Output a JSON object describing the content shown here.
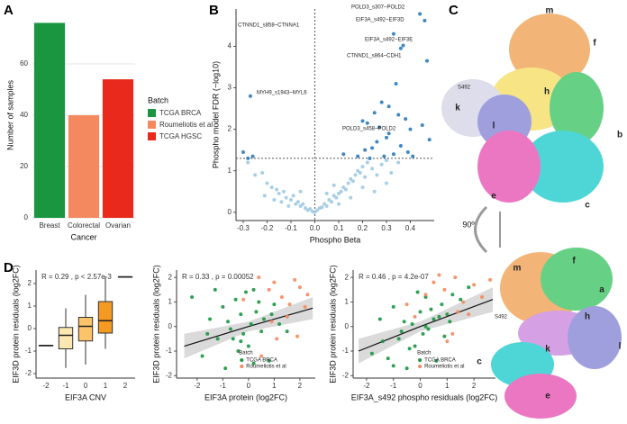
{
  "panel_labels": [
    "A",
    "B",
    "C",
    "D"
  ],
  "chart_data": [
    {
      "type": "bar",
      "x_label": "Cancer",
      "y_label": "Number of samples",
      "categories": [
        "Breast",
        "Colorectal",
        "Ovarian"
      ],
      "values": [
        76,
        40,
        54
      ],
      "colors": [
        "#1a9641",
        "#f4895f",
        "#e8291c"
      ],
      "ylim": [
        0,
        80
      ],
      "yticks": [
        0,
        20,
        40,
        60
      ],
      "grid": true,
      "legend_title": "Batch",
      "legend_labels": [
        "TCGA BRCA",
        "Roumeliotis et al",
        "TCGA HGSC"
      ]
    },
    {
      "type": "scatter",
      "x_label": "Phospho Beta",
      "y_label": "Phospho model FDR (−log10)",
      "xlim": [
        -0.33,
        0.5
      ],
      "xticks": [
        -0.3,
        -0.2,
        -0.1,
        {
          "value": 0,
          "label": "0.0"
        },
        0.1,
        0.2,
        0.3,
        0.4
      ],
      "ylim": [
        -0.2,
        4.9
      ],
      "yticks": [
        0,
        1,
        2,
        3,
        4
      ],
      "ref_lines": {
        "h": 1.3,
        "v": 0
      },
      "series": [
        {
          "color": "#9ecae1",
          "x": [
            -0.28,
            -0.25,
            -0.22,
            -0.2,
            -0.18,
            -0.16,
            -0.15,
            -0.13,
            -0.12,
            -0.1,
            -0.09,
            -0.08,
            -0.07,
            -0.06,
            -0.05,
            -0.04,
            -0.03,
            -0.02,
            -0.01,
            0,
            0.01,
            0.02,
            0.03,
            0.04,
            0.05,
            0.06,
            0.07,
            0.08,
            0.09,
            0.1,
            0.11,
            0.12,
            0.13,
            0.14,
            0.15,
            0.16,
            0.17,
            0.18,
            0.19,
            0.2,
            0.21,
            0.22,
            0.24,
            0.26,
            0.28,
            0.3,
            0.32,
            0.35,
            -0.11,
            -0.14,
            -0.17,
            -0.06,
            0.05,
            0.1,
            0.15,
            0.2,
            0.25,
            -0.21,
            0.3,
            0.08
          ],
          "values": [
            1.2,
            0.9,
            0.95,
            0.7,
            0.6,
            0.55,
            0.45,
            0.5,
            0.35,
            0.3,
            0.4,
            0.2,
            0.25,
            0.15,
            0.2,
            0.1,
            0.05,
            0.08,
            0.02,
            0,
            0.05,
            0.1,
            0.12,
            0.2,
            0.15,
            0.3,
            0.25,
            0.4,
            0.35,
            0.45,
            0.5,
            0.6,
            0.55,
            0.7,
            0.8,
            0.75,
            0.9,
            1.0,
            0.95,
            1.1,
            0.85,
            1.2,
            1.05,
            0.9,
            1.15,
            1.25,
            0.95,
            1.2,
            0.15,
            0.25,
            0.3,
            0.5,
            0.45,
            0.2,
            0.35,
            0.6,
            0.5,
            0.4,
            0.7,
            0.65
          ]
        },
        {
          "color": "#2b7bba",
          "x": [
            0.44,
            0.46,
            0.33,
            0.37,
            0.36,
            0.47,
            -0.27,
            0.34,
            0.28,
            0.31,
            0.25,
            0.35,
            0.2,
            0.22,
            0.27,
            0.38,
            0.4,
            0.3,
            0.26,
            0.24,
            0.21,
            0.45,
            0.31,
            0.39,
            0.29,
            -0.3,
            -0.28,
            -0.26,
            0.12,
            0.18,
            0.48,
            0.33,
            0.23,
            0.36,
            0.41
          ],
          "values": [
            4.78,
            4.62,
            4.3,
            4.02,
            3.95,
            3.65,
            2.8,
            3.1,
            2.65,
            2.55,
            2.4,
            2.35,
            2.2,
            2.15,
            2.05,
            2.25,
            2.0,
            1.8,
            1.7,
            1.55,
            1.5,
            2.1,
            1.9,
            1.45,
            1.35,
            1.45,
            1.3,
            1.35,
            1.4,
            1.35,
            1.75,
            1.4,
            1.3,
            1.6,
            1.35
          ]
        }
      ],
      "annotations": [
        "POLD3_s307~POLD2",
        "EIF3A_s492~EIF3D",
        "CTNND1_s858~CTNNA1",
        "EIF3A_s492~EIF3E",
        "CTNND1_s864~CDH1",
        "MYH9_s1943~MYL6",
        "POLD3_s458~POLD2"
      ]
    },
    {
      "type": "box",
      "x_label": "EIF3A CNV",
      "y_label": "EIF3D protein residuals (log2FC)",
      "note": "R = 0.29 , p < 2.57e-3",
      "categories": [
        "-2",
        "-1",
        "0",
        "1",
        "2"
      ],
      "min": [
        -0.75,
        -1.75,
        -1.6,
        -0.9,
        2.3
      ],
      "q1": [
        -0.75,
        -0.9,
        -0.55,
        -0.2,
        2.3
      ],
      "median": [
        -0.75,
        -0.3,
        0.1,
        0.35,
        2.3
      ],
      "q3": [
        -0.75,
        0.05,
        0.5,
        1.2,
        2.3
      ],
      "max": [
        -0.75,
        0.9,
        1.5,
        2.3,
        2.3
      ],
      "colors": [
        "#fff5e0",
        "#fde7b0",
        "#fbc36a",
        "#f59a20",
        "#c9540a"
      ],
      "ylim": [
        -2.2,
        2.6
      ],
      "yticks": [
        -2,
        -1,
        0,
        1,
        2
      ]
    },
    {
      "type": "scatter",
      "x_label": "EIF3A protein (log2FC)",
      "y_label": "EIF3D protein residuals (log2FC)",
      "note": "R = 0.33 , p = 0.00052",
      "xlim": [
        -2.8,
        2.6
      ],
      "xticks": [
        -2,
        -1,
        0,
        1,
        2
      ],
      "ylim": [
        -2.1,
        2.3
      ],
      "yticks": [
        -2,
        -1,
        0,
        1,
        2
      ],
      "legend_title": "Batch",
      "fit": {
        "x": [
          -2.5,
          0,
          2.5
        ],
        "y": [
          -0.8,
          0,
          0.75
        ],
        "lower": [
          -1.3,
          -0.2,
          0.3
        ],
        "upper": [
          -0.3,
          0.2,
          1.2
        ]
      },
      "series": [
        {
          "name": "TCGA BRCA",
          "color": "#1a9641",
          "x": [
            -2.2,
            -1.8,
            -1.5,
            -1.3,
            -1.2,
            -1,
            -0.9,
            -0.8,
            -0.6,
            -0.5,
            -0.4,
            -0.3,
            -0.2,
            -0.1,
            0,
            0.1,
            0.2,
            0.3,
            0.4,
            0.5,
            0.6,
            0.8,
            1,
            1.2,
            -1.6,
            -0.7,
            0.2,
            0.9,
            -0.3,
            1.5
          ],
          "values": [
            1.2,
            -1.2,
            0.3,
            1.5,
            -0.5,
            0.8,
            -1.7,
            0.2,
            -0.5,
            1.1,
            -1.0,
            0.5,
            -0.3,
            1.4,
            -0.8,
            0.1,
            -1.5,
            0.6,
            1.0,
            -0.2,
            0.3,
            -1.4,
            0.9,
            0.1,
            -0.3,
            -0.1,
            1.5,
            0.5,
            -0.6,
            -0.2
          ]
        },
        {
          "name": "Roumeliotis et al",
          "color": "#f4895f",
          "x": [
            0.4,
            0.8,
            1.0,
            1.3,
            1.5,
            1.8,
            2.0,
            2.2,
            0.5,
            1.1,
            1.6,
            0.9,
            -0.2,
            1.9,
            2.3
          ],
          "values": [
            2.0,
            1.5,
            1.8,
            1.2,
            0.4,
            1.9,
            1.6,
            0.8,
            -1.2,
            -0.5,
            0.9,
            0.2,
            1.1,
            -0.4,
            1.3
          ]
        }
      ]
    },
    {
      "type": "scatter",
      "x_label": "EIF3A_s492 phospho residuals (log2FC)",
      "y_label": "EIF3D protein residuals (log2FC)",
      "note": "R = 0.46 , p = 4.2e-07",
      "xlim": [
        -2.5,
        2.8
      ],
      "xticks": [
        -2,
        -1,
        0,
        1,
        2
      ],
      "ylim": [
        -2.1,
        2.3
      ],
      "yticks": [
        -2,
        -1,
        0,
        1,
        2
      ],
      "legend_title": "Batch",
      "fit": {
        "x": [
          -2.3,
          0,
          2.7
        ],
        "y": [
          -1.0,
          0,
          1.1
        ],
        "lower": [
          -1.5,
          -0.2,
          0.6
        ],
        "upper": [
          -0.5,
          0.2,
          1.6
        ]
      },
      "series": [
        {
          "name": "TCGA BRCA",
          "color": "#1a9641",
          "x": [
            -1.8,
            -1.5,
            -1.2,
            -1,
            -0.8,
            -0.6,
            -0.5,
            -0.3,
            -0.2,
            0,
            0.1,
            0.2,
            0.3,
            0.5,
            0.6,
            0.8,
            1,
            1.2,
            1.5,
            -1.4,
            -0.7,
            0.4,
            0.9,
            -0.1,
            0.7,
            1.8,
            -0.4,
            0.2,
            1.1,
            -1.0
          ],
          "values": [
            -1.1,
            0.3,
            -1.3,
            0.8,
            -0.5,
            0.2,
            -1.7,
            0.1,
            -0.8,
            0.6,
            -0.3,
            1.2,
            -0.1,
            0.3,
            -1.4,
            0.9,
            0.5,
            1.3,
            1.1,
            -0.6,
            -0.2,
            0.7,
            -0.4,
            1.4,
            0.4,
            1.6,
            -0.9,
            0,
            0.2,
            -1.6
          ]
        },
        {
          "name": "Roumeliotis et al",
          "color": "#f4895f",
          "x": [
            0.5,
            0.9,
            1.3,
            1.6,
            2.0,
            2.3,
            1.0,
            1.8,
            -0.5,
            0.2,
            1.4,
            2.6,
            0.7,
            1.2,
            -0.2
          ],
          "values": [
            1.8,
            1.5,
            2.0,
            1.0,
            1.7,
            1.2,
            -0.6,
            0.5,
            0.9,
            1.3,
            0.6,
            1.9,
            2.1,
            -0.3,
            0.4
          ]
        }
      ]
    }
  ],
  "structure": {
    "top_labels": [
      "m",
      "f",
      "S492",
      "h",
      "k",
      "l",
      "b",
      "e",
      "c"
    ],
    "rotation": "90º",
    "bottom_labels": [
      "m",
      "f",
      "a",
      "h",
      "S492",
      "k",
      "l",
      "c",
      "e"
    ]
  }
}
